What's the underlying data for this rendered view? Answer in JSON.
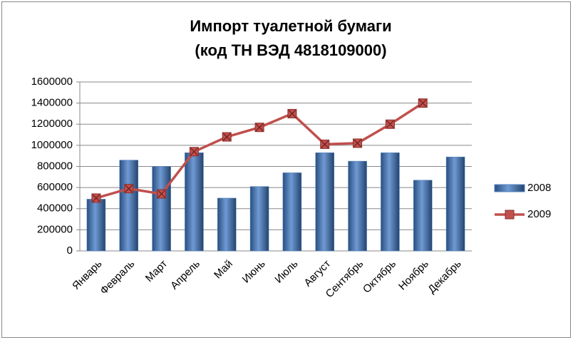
{
  "chart_data": {
    "type": "bar",
    "title": "Импорт  туалетной бумаги",
    "subtitle": "(код ТН ВЭД 4818109000)",
    "categories": [
      "Январь",
      "Февраль",
      "Март",
      "Апрель",
      "Май",
      "Июнь",
      "Июль",
      "Август",
      "Сентябрь",
      "Октябрь",
      "Ноябрь",
      "Декабрь"
    ],
    "series": [
      {
        "name": "2008",
        "type": "bar",
        "color": "#4f81bd",
        "values": [
          490000,
          860000,
          800000,
          930000,
          500000,
          610000,
          740000,
          930000,
          850000,
          930000,
          670000,
          890000
        ]
      },
      {
        "name": "2009",
        "type": "line",
        "color": "#c0504d",
        "values": [
          500000,
          590000,
          540000,
          940000,
          1080000,
          1170000,
          1300000,
          1010000,
          1020000,
          1200000,
          1400000,
          null
        ]
      }
    ],
    "ylim": [
      0,
      1600000
    ],
    "yticks": [
      0,
      200000,
      400000,
      600000,
      800000,
      1000000,
      1200000,
      1400000,
      1600000
    ],
    "grid": true,
    "legend": "right"
  }
}
